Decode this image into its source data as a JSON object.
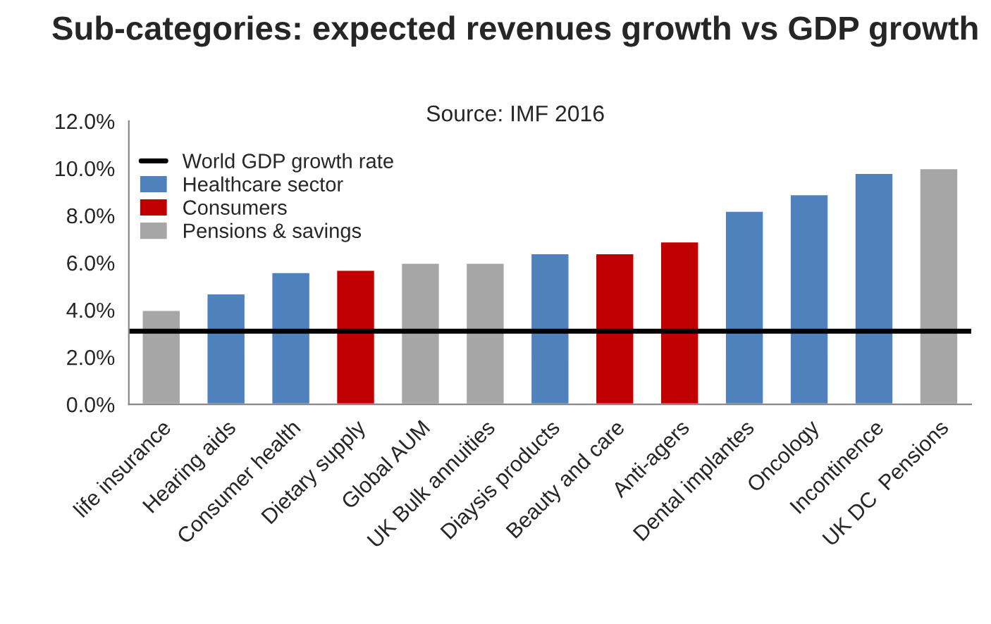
{
  "chart_data": {
    "type": "bar",
    "title": "Sub-categories: expected revenues growth vs GDP growth",
    "subtitle": "Source: IMF 2016",
    "categories": [
      "life insurance",
      "Hearing aids",
      "Consumer health",
      "Dietary supply",
      "Global AUM",
      "UK Bulk annuities",
      "Diaysis products",
      "Beauty and care",
      "Anti-agers",
      "Dental implantes",
      "Oncology",
      "Incontinence",
      "UK DC  Pensions"
    ],
    "series": [
      {
        "name": "Healthcare sector",
        "color": "#4f81bd",
        "values": [
          null,
          4.7,
          5.6,
          null,
          null,
          null,
          6.4,
          null,
          null,
          8.2,
          8.9,
          9.8,
          null
        ]
      },
      {
        "name": "Consumers",
        "color": "#c00000",
        "values": [
          null,
          null,
          null,
          5.7,
          null,
          null,
          null,
          6.4,
          6.9,
          null,
          null,
          null,
          null
        ]
      },
      {
        "name": "Pensions & savings",
        "color": "#a6a6a6",
        "values": [
          4.0,
          null,
          null,
          null,
          6.0,
          6.0,
          null,
          null,
          null,
          null,
          null,
          null,
          10.0
        ]
      }
    ],
    "ref_lines": [
      {
        "axis": "y",
        "value": 3.1,
        "label": "World GDP growth rate",
        "color": "#000000",
        "line_style": "solid"
      }
    ],
    "ylim": [
      0,
      12
    ],
    "yticks": [
      {
        "value": 0,
        "label": "0.0%"
      },
      {
        "value": 2,
        "label": "2.0%"
      },
      {
        "value": 4,
        "label": "4.0%"
      },
      {
        "value": 6,
        "label": "6.0%"
      },
      {
        "value": 8,
        "label": "8.0%"
      },
      {
        "value": 10,
        "label": "10.0%"
      },
      {
        "value": 12,
        "label": "12.0%"
      }
    ],
    "grid": false,
    "legend": "top left"
  }
}
